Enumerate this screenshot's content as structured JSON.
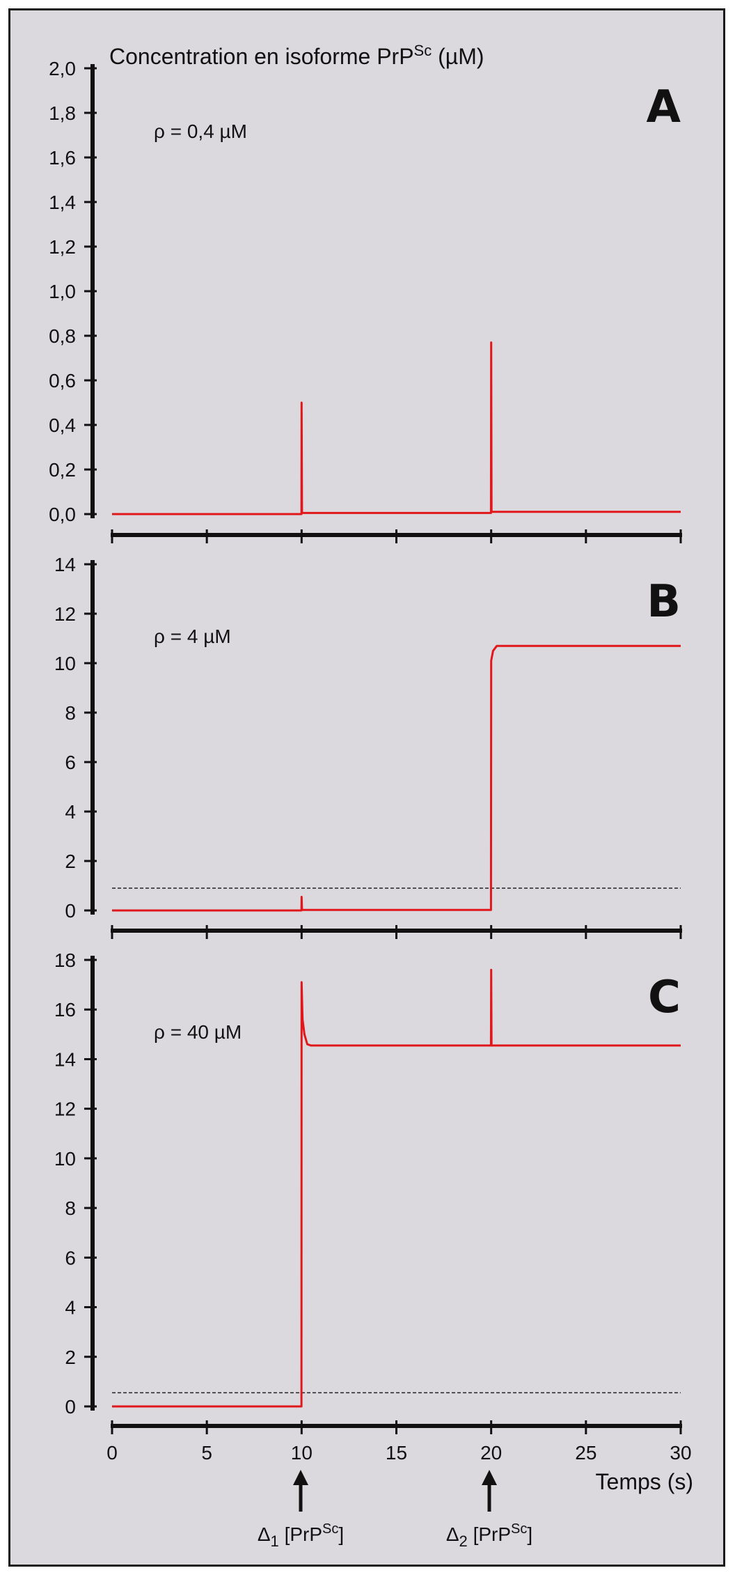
{
  "figure": {
    "ylabel_prefix": "Concentration en isoforme PrP",
    "ylabel_sup": "Sc",
    "ylabel_suffix": " (µM)",
    "xlabel": "Temps (s)",
    "arrow1_delta": "Δ",
    "arrow1_sub": "1",
    "arrow1_text": " [PrP",
    "arrow1_sup": "Sc",
    "arrow1_end": "]",
    "arrow2_delta": "Δ",
    "arrow2_sub": "2",
    "arrow2_text": " [PrP",
    "arrow2_sup": "Sc",
    "arrow2_end": "]",
    "colors": {
      "background": "#dcd9de",
      "line": "#e0181c",
      "axis": "#111111"
    }
  },
  "chart_data": [
    {
      "panel": "A",
      "type": "line",
      "annotation": "ρ = 0,4 µM",
      "xlim": [
        0,
        30
      ],
      "ylim": [
        0,
        2.0
      ],
      "xticks": [
        0,
        5,
        10,
        15,
        20,
        25,
        30
      ],
      "yticks": [
        "0,0",
        "0,2",
        "0,4",
        "0,6",
        "0,8",
        "1,0",
        "1,2",
        "1,4",
        "1,6",
        "1,8",
        "2,0"
      ],
      "ytick_values": [
        0,
        0.2,
        0.4,
        0.6,
        0.8,
        1.0,
        1.2,
        1.4,
        1.6,
        1.8,
        2.0
      ],
      "threshold": null,
      "series": [
        {
          "x": [
            0,
            9.99,
            10,
            10.02,
            19.99,
            20,
            20.02,
            30
          ],
          "y": [
            0,
            0,
            0.5,
            0.005,
            0.005,
            0.77,
            0.01,
            0.01
          ]
        }
      ]
    },
    {
      "panel": "B",
      "type": "line",
      "annotation": "ρ = 4 µM",
      "xlim": [
        0,
        30
      ],
      "ylim": [
        0,
        14
      ],
      "xticks": [
        0,
        5,
        10,
        15,
        20,
        25,
        30
      ],
      "yticks": [
        "0",
        "2",
        "4",
        "6",
        "8",
        "10",
        "12",
        "14"
      ],
      "ytick_values": [
        0,
        2,
        4,
        6,
        8,
        10,
        12,
        14
      ],
      "threshold": 0.9,
      "series": [
        {
          "x": [
            0,
            9.99,
            10,
            10.02,
            19.99,
            20,
            20.1,
            20.3,
            30
          ],
          "y": [
            0,
            0,
            0.55,
            0.02,
            0.02,
            10.1,
            10.5,
            10.7,
            10.7
          ]
        }
      ]
    },
    {
      "panel": "C",
      "type": "line",
      "annotation": "ρ = 40 µM",
      "xlim": [
        0,
        30
      ],
      "ylim": [
        0,
        18
      ],
      "xticks": [
        0,
        5,
        10,
        15,
        20,
        25,
        30
      ],
      "yticks": [
        "0",
        "2",
        "4",
        "6",
        "8",
        "10",
        "12",
        "14",
        "16",
        "18"
      ],
      "ytick_values": [
        0,
        2,
        4,
        6,
        8,
        10,
        12,
        14,
        16,
        18
      ],
      "threshold": 0.55,
      "series": [
        {
          "x": [
            0,
            9.99,
            10,
            10.05,
            10.15,
            10.3,
            10.5,
            19.99,
            20,
            20.02,
            30
          ],
          "y": [
            0,
            0,
            17.1,
            15.6,
            15.0,
            14.6,
            14.55,
            14.55,
            17.6,
            14.55,
            14.55
          ]
        }
      ]
    }
  ]
}
